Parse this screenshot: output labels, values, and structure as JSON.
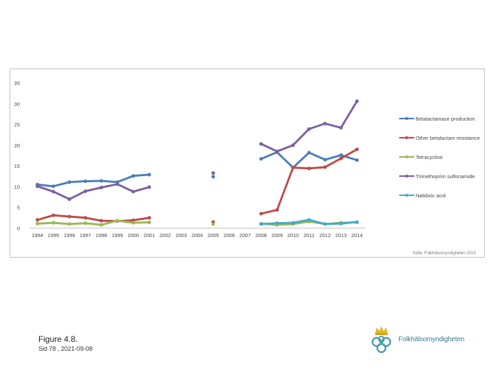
{
  "chart_data": {
    "type": "line",
    "title": "",
    "xlabel": "",
    "ylabel": "",
    "ylim": [
      0,
      35
    ],
    "yticks": [
      0,
      5,
      10,
      15,
      20,
      25,
      30,
      35
    ],
    "categories": [
      "1994",
      "1995",
      "1996",
      "1997",
      "1998",
      "1999",
      "2000",
      "2001",
      "2002",
      "2003",
      "2004",
      "2005",
      "2006",
      "2007",
      "2008",
      "2009",
      "2010",
      "2011",
      "2012",
      "2013",
      "2014"
    ],
    "series": [
      {
        "name": "Betalactamase production",
        "color": "#4a7ebb",
        "values": [
          10.5,
          10.1,
          11.1,
          11.3,
          11.4,
          11.1,
          12.6,
          12.9,
          null,
          null,
          null,
          12.4,
          null,
          null,
          16.7,
          18.3,
          14.6,
          18.2,
          16.5,
          17.6,
          16.4
        ]
      },
      {
        "name": "Other betalactam resistance",
        "color": "#be4b48",
        "values": [
          2.0,
          3.1,
          2.8,
          2.5,
          1.8,
          1.7,
          1.9,
          2.5,
          null,
          null,
          null,
          1.5,
          null,
          null,
          3.5,
          4.4,
          14.6,
          14.4,
          14.7,
          16.8,
          19.0
        ]
      },
      {
        "name": "Tetracycline",
        "color": "#98b954",
        "values": [
          1.1,
          1.3,
          1.0,
          1.2,
          0.8,
          1.8,
          1.3,
          1.4,
          null,
          null,
          null,
          1.0,
          null,
          null,
          1.1,
          0.8,
          1.0,
          1.6,
          1.0,
          1.3,
          1.4
        ]
      },
      {
        "name": "Trimethoprim sulfonamide",
        "color": "#7d5fa0",
        "values": [
          10.1,
          8.8,
          7.0,
          8.9,
          9.8,
          10.6,
          8.8,
          9.9,
          null,
          null,
          null,
          13.3,
          null,
          null,
          20.3,
          18.5,
          20.0,
          23.9,
          25.2,
          24.2,
          30.6
        ]
      },
      {
        "name": "Nalidixic acid",
        "color": "#46aac5",
        "values": [
          null,
          null,
          null,
          null,
          null,
          null,
          null,
          null,
          null,
          null,
          null,
          null,
          null,
          null,
          1.0,
          1.2,
          1.3,
          2.0,
          1.0,
          1.1,
          1.5
        ]
      }
    ],
    "legend_position": "right",
    "grid": false,
    "source": "Källa: Folkhälsomyndigheten 2015"
  },
  "figure": {
    "title": "Figure 4.8.",
    "subtitle": "Sid 78 , 2021-09-08"
  },
  "logo": {
    "text": "Folkhälsomyndigheten"
  }
}
